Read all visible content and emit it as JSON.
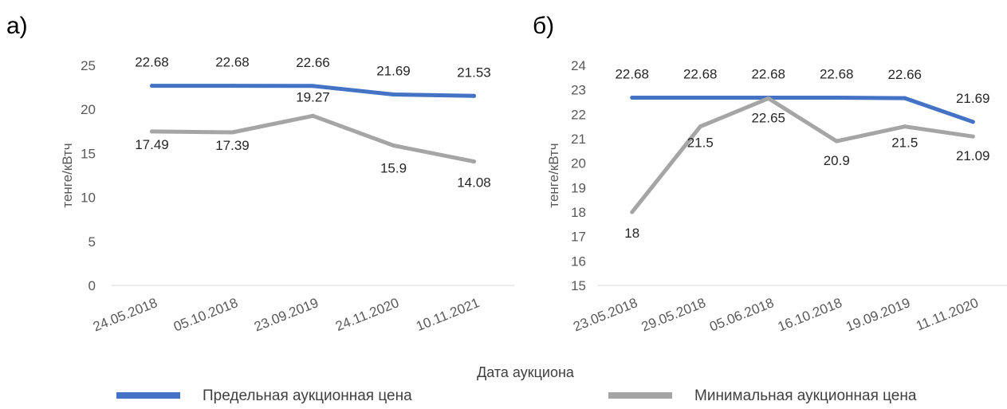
{
  "colors": {
    "limit": "#4472C4",
    "min": "#A5A5A5",
    "axis": "#D9D9D9"
  },
  "xlabel": "Дата аукциона",
  "legend": {
    "series1": "Предельная аукционная цена",
    "series2": "Минимальная аукционная цена"
  },
  "chart_data": [
    {
      "type": "line",
      "panel_label": "а)",
      "ylabel": "тенге/кВтч",
      "ylim": [
        0,
        25
      ],
      "yticks": [
        "0",
        "5",
        "10",
        "15",
        "20",
        "25"
      ],
      "categories": [
        "24.05.2018",
        "05.10.2018",
        "23.09.2019",
        "24.11.2020",
        "10.11.2021"
      ],
      "series": [
        {
          "name": "Предельная аукционная цена",
          "values": [
            22.68,
            22.68,
            22.66,
            21.69,
            21.53
          ],
          "labels": [
            "22.68",
            "22.68",
            "22.66",
            "21.69",
            "21.53"
          ]
        },
        {
          "name": "Минимальная аукционная цена",
          "values": [
            17.49,
            17.39,
            19.27,
            15.9,
            14.08
          ],
          "labels": [
            "17.49",
            "17.39",
            "19.27",
            "15.9",
            "14.08"
          ]
        }
      ]
    },
    {
      "type": "line",
      "panel_label": "б)",
      "ylabel": "тенге/кВтч",
      "ylim": [
        15,
        24
      ],
      "yticks": [
        "15",
        "16",
        "17",
        "18",
        "19",
        "20",
        "21",
        "22",
        "23",
        "24"
      ],
      "categories": [
        "23.05.2018",
        "29.05.2018",
        "05.06.2018",
        "16.10.2018",
        "19.09.2019",
        "11.11.2020"
      ],
      "series": [
        {
          "name": "Предельная аукционная цена",
          "values": [
            22.68,
            22.68,
            22.68,
            22.68,
            22.66,
            21.69
          ],
          "labels": [
            "22.68",
            "22.68",
            "22.68",
            "22.68",
            "22.66",
            "21.69"
          ]
        },
        {
          "name": "Минимальная аукционная цена",
          "values": [
            18,
            21.5,
            22.65,
            20.9,
            21.5,
            21.09
          ],
          "labels": [
            "18",
            "21.5",
            "22.65",
            "20.9",
            "21.5",
            "21.09"
          ]
        }
      ]
    }
  ]
}
